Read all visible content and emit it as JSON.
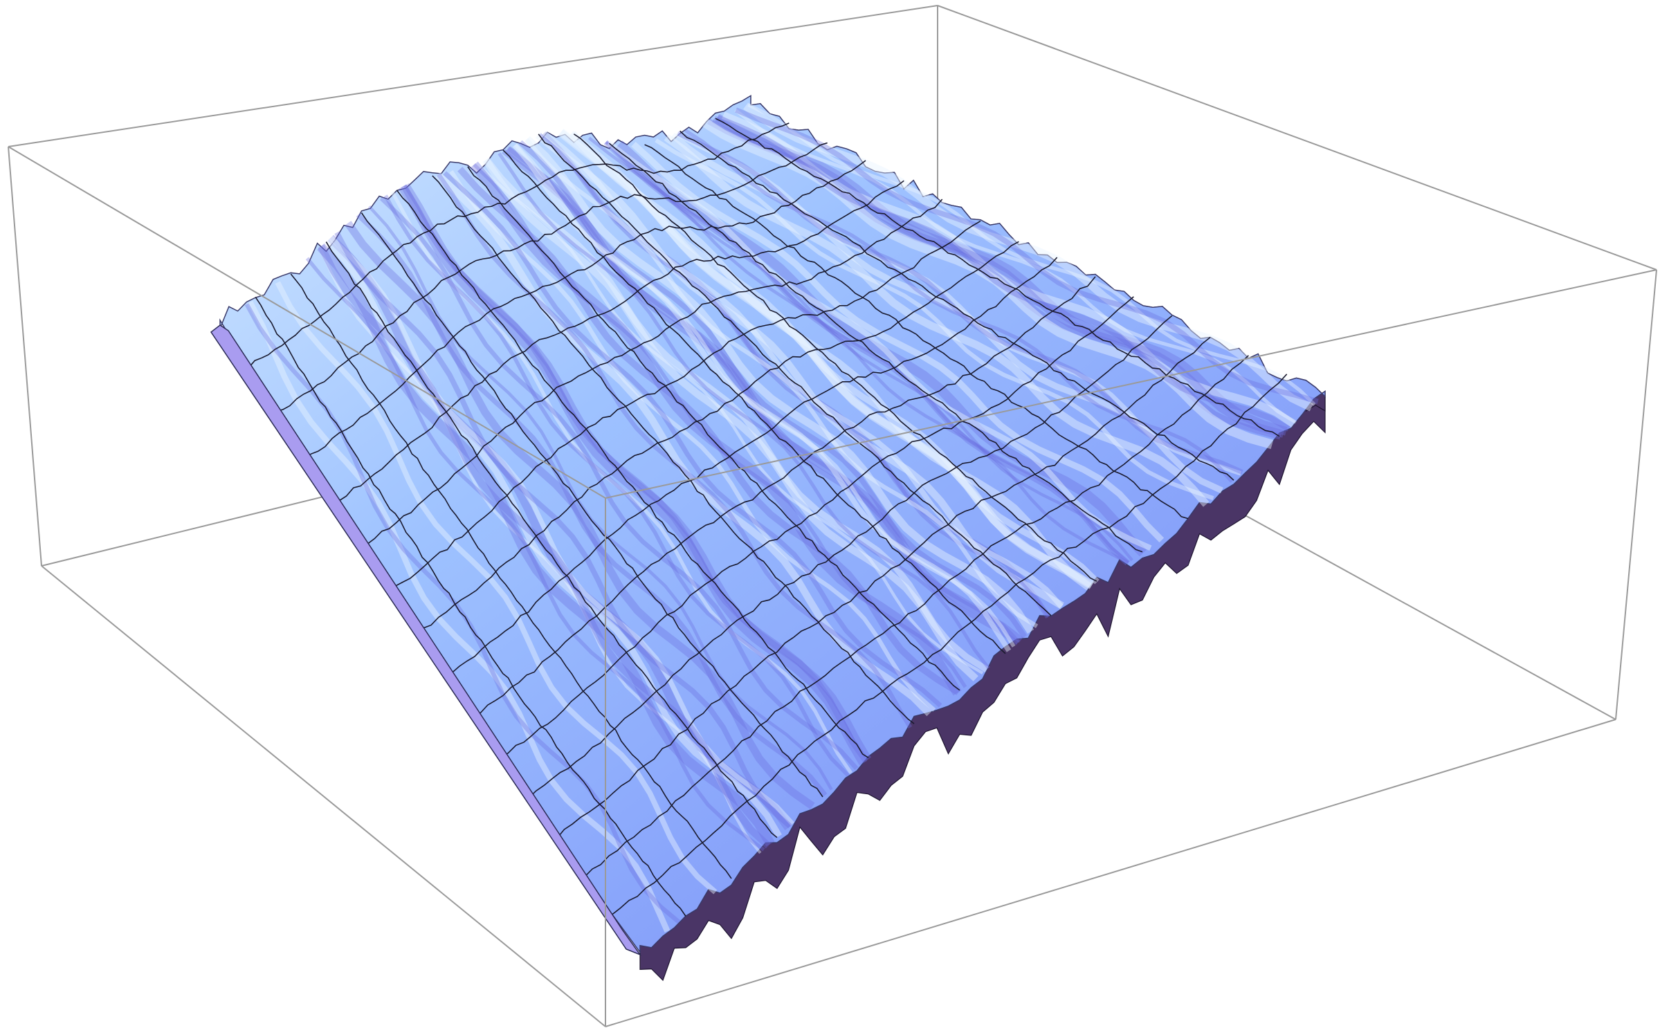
{
  "chart_data": {
    "type": "surface",
    "title": "",
    "xlabel": "",
    "ylabel": "",
    "zlabel": "",
    "axes_ticks_shown": false,
    "bounding_box": true,
    "mesh": "on",
    "mesh_lines_u": 15,
    "mesh_lines_v": 15,
    "colors": {
      "surface_light": "#cfe7ff",
      "surface_mid": "#8fb0ff",
      "surface_dark": "#6d7df0",
      "surface_violet": "#8c80e6",
      "skirt": "#4a3566",
      "mesh": "#1a1a2e",
      "box": "#9a9a9a",
      "background": "#ffffff"
    }
  }
}
